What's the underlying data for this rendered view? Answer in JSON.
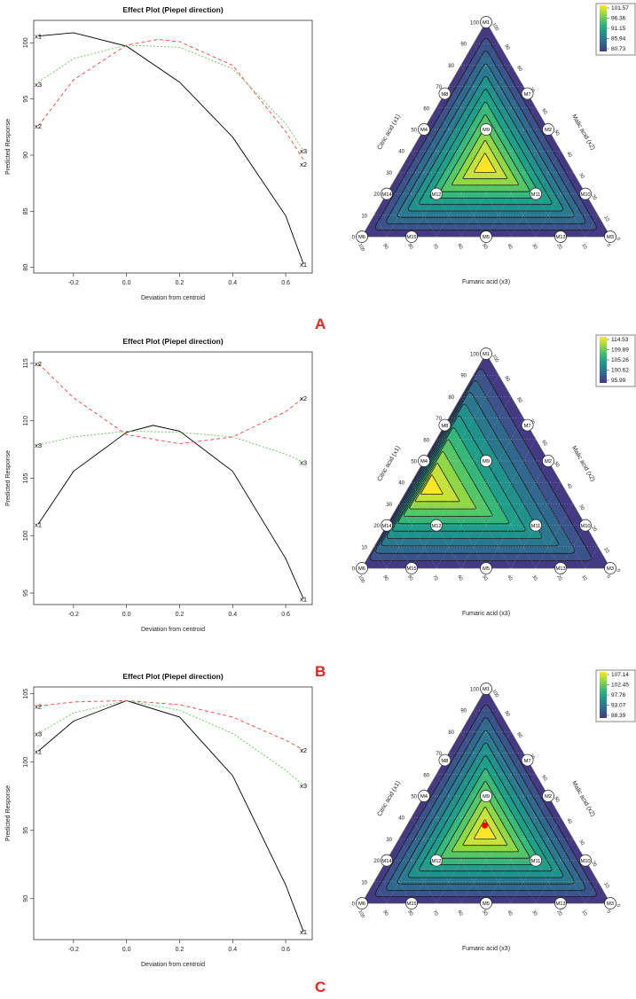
{
  "chart_data": [
    {
      "id": "A",
      "type": "line",
      "title": "Effect Plot (Piepel direction)",
      "xlabel": "Deviation from centroid",
      "ylabel": "Predicted Response",
      "xlim": [
        -0.35,
        0.7
      ],
      "ylim": [
        79.5,
        102
      ],
      "xticks": [
        -0.2,
        0.0,
        0.2,
        0.4,
        0.6
      ],
      "xtick_labels": [
        "-0.2",
        "0.0",
        "0.2",
        "0.4",
        "0.6"
      ],
      "yticks": [
        80,
        85,
        90,
        95,
        100
      ],
      "ytick_labels": [
        "80",
        "85",
        "90",
        "95",
        "100"
      ],
      "series": [
        {
          "name": "x1",
          "color": "#000000",
          "dash": "none",
          "x": [
            -0.333,
            -0.2,
            0.0,
            0.2,
            0.4,
            0.6,
            0.667
          ],
          "values": [
            100.6,
            100.9,
            99.7,
            96.5,
            91.6,
            84.6,
            80.3
          ]
        },
        {
          "name": "x2",
          "color": "#e8473f",
          "dash": "4,3",
          "x": [
            -0.333,
            -0.2,
            0.0,
            0.12,
            0.2,
            0.4,
            0.6,
            0.667
          ],
          "values": [
            92.6,
            96.7,
            99.8,
            100.3,
            100.1,
            98.0,
            92.1,
            89.6
          ]
        },
        {
          "name": "x3",
          "color": "#6bc35b",
          "dash": "2,2",
          "x": [
            -0.333,
            -0.2,
            0.0,
            0.2,
            0.4,
            0.6,
            0.667
          ],
          "values": [
            96.5,
            98.6,
            99.8,
            99.6,
            97.7,
            92.8,
            90.4
          ]
        }
      ],
      "line_labels": [
        {
          "text": "x1",
          "x": -0.333,
          "y": 100.6
        },
        {
          "text": "x3",
          "x": -0.333,
          "y": 96.3
        },
        {
          "text": "x2",
          "x": -0.333,
          "y": 92.6
        },
        {
          "text": "x3",
          "x": 0.667,
          "y": 90.4
        },
        {
          "text": "x2",
          "x": 0.667,
          "y": 89.2
        },
        {
          "text": "x1",
          "x": 0.667,
          "y": 80.3
        }
      ],
      "ternary": {
        "type": "ternary contour",
        "legend_values": [
          "101.57",
          "96.36",
          "91.15",
          "85.94",
          "80.73"
        ],
        "colors": [
          "#fde725",
          "#8fd744",
          "#35b779",
          "#21918c",
          "#31688e",
          "#443a83"
        ],
        "axis_labels": [
          "Citric acid (x1)",
          "Malic acid (x2)",
          "Fumaric acid (x3)"
        ],
        "peak": [
          0.33,
          0.33,
          0.34
        ],
        "vertex_level": 80.7,
        "marker": false
      }
    },
    {
      "id": "B",
      "type": "line",
      "title": "Effect Plot (Piepel direction)",
      "xlabel": "Deviation from centroid",
      "ylabel": "Predicted Response",
      "xlim": [
        -0.35,
        0.7
      ],
      "ylim": [
        94,
        116
      ],
      "xticks": [
        -0.2,
        0.0,
        0.2,
        0.4,
        0.6
      ],
      "xtick_labels": [
        "-0.2",
        "0.0",
        "0.2",
        "0.4",
        "0.6"
      ],
      "yticks": [
        95,
        100,
        105,
        110,
        115
      ],
      "ytick_labels": [
        "95",
        "100",
        "105",
        "110",
        "115"
      ],
      "series": [
        {
          "name": "x1",
          "color": "#000000",
          "dash": "none",
          "x": [
            -0.333,
            -0.2,
            0.0,
            0.1,
            0.2,
            0.4,
            0.6,
            0.667
          ],
          "values": [
            101.0,
            105.6,
            109.0,
            109.6,
            109.1,
            105.6,
            98.0,
            94.5
          ]
        },
        {
          "name": "x2",
          "color": "#e8473f",
          "dash": "4,3",
          "x": [
            -0.333,
            -0.2,
            0.0,
            0.2,
            0.4,
            0.6,
            0.667
          ],
          "values": [
            115.0,
            112.0,
            108.8,
            108.0,
            108.6,
            110.8,
            112.0
          ]
        },
        {
          "name": "x3",
          "color": "#6bc35b",
          "dash": "2,2",
          "x": [
            -0.333,
            -0.2,
            0.0,
            0.2,
            0.4,
            0.6,
            0.667
          ],
          "values": [
            107.9,
            108.6,
            109.1,
            109.0,
            108.6,
            107.1,
            106.4
          ]
        }
      ],
      "line_labels": [
        {
          "text": "x2",
          "x": -0.333,
          "y": 115.0
        },
        {
          "text": "x3",
          "x": -0.333,
          "y": 107.9
        },
        {
          "text": "x1",
          "x": -0.333,
          "y": 101.0
        },
        {
          "text": "x2",
          "x": 0.667,
          "y": 112.0
        },
        {
          "text": "x3",
          "x": 0.667,
          "y": 106.4
        },
        {
          "text": "x1",
          "x": 0.667,
          "y": 94.5
        }
      ],
      "ternary": {
        "type": "ternary contour",
        "legend_values": [
          "114.53",
          "109.89",
          "105.26",
          "100.62",
          "95.99"
        ],
        "colors": [
          "#fde725",
          "#8fd744",
          "#35b779",
          "#21918c",
          "#31688e",
          "#443a83"
        ],
        "axis_labels": [
          "Citric acid (x1)",
          "Malic acid (x2)",
          "Fumaric acid (x3)"
        ],
        "peak": [
          0.38,
          0.07,
          0.55
        ],
        "vertex_level": 96.0,
        "marker": false
      }
    },
    {
      "id": "C",
      "type": "line",
      "title": "Effect Plot (Piepel direction)",
      "xlabel": "Deviation from centroid",
      "ylabel": "Predicted Response",
      "xlim": [
        -0.35,
        0.7
      ],
      "ylim": [
        87,
        105.5
      ],
      "xticks": [
        -0.2,
        0.0,
        0.2,
        0.4,
        0.6
      ],
      "xtick_labels": [
        "-0.2",
        "0.0",
        "0.2",
        "0.4",
        "0.6"
      ],
      "yticks": [
        90,
        95,
        100,
        105
      ],
      "ytick_labels": [
        "90",
        "95",
        "100",
        "105"
      ],
      "series": [
        {
          "name": "x1",
          "color": "#000000",
          "dash": "none",
          "x": [
            -0.333,
            -0.2,
            0.0,
            0.2,
            0.4,
            0.6,
            0.667
          ],
          "values": [
            100.8,
            103.0,
            104.5,
            103.3,
            99.0,
            91.0,
            87.6
          ]
        },
        {
          "name": "x2",
          "color": "#e8473f",
          "dash": "4,3",
          "x": [
            -0.333,
            -0.2,
            0.0,
            0.2,
            0.4,
            0.6,
            0.667
          ],
          "values": [
            104.1,
            104.4,
            104.5,
            104.2,
            103.3,
            101.6,
            100.9
          ]
        },
        {
          "name": "x3",
          "color": "#6bc35b",
          "dash": "2,2",
          "x": [
            -0.333,
            -0.2,
            0.0,
            0.2,
            0.4,
            0.6,
            0.667
          ],
          "values": [
            102.1,
            103.6,
            104.5,
            103.8,
            102.1,
            99.4,
            98.3
          ]
        }
      ],
      "line_labels": [
        {
          "text": "x2",
          "x": -0.333,
          "y": 104.1
        },
        {
          "text": "x3",
          "x": -0.333,
          "y": 102.1
        },
        {
          "text": "x1",
          "x": -0.333,
          "y": 100.8
        },
        {
          "text": "x2",
          "x": 0.667,
          "y": 100.9
        },
        {
          "text": "x3",
          "x": 0.667,
          "y": 98.3
        },
        {
          "text": "x1",
          "x": 0.667,
          "y": 87.6
        }
      ],
      "ternary": {
        "type": "ternary contour",
        "legend_values": [
          "107.14",
          "102.45",
          "97.76",
          "93.07",
          "88.39"
        ],
        "colors": [
          "#fde725",
          "#8fd744",
          "#35b779",
          "#21918c",
          "#31688e",
          "#443a83"
        ],
        "axis_labels": [
          "Citric acid (x1)",
          "Malic acid (x2)",
          "Fumaric acid (x3)"
        ],
        "peak": [
          0.33,
          0.33,
          0.34
        ],
        "vertex_level": 88.4,
        "marker": true,
        "marker_color": "#ff0000"
      }
    }
  ],
  "ternary_common": {
    "points": [
      {
        "name": "M1",
        "c": [
          1.0,
          0.0,
          0.0
        ]
      },
      {
        "name": "M8",
        "c": [
          0.667,
          0.0,
          0.333
        ]
      },
      {
        "name": "M7",
        "c": [
          0.667,
          0.333,
          0.0
        ]
      },
      {
        "name": "M4",
        "c": [
          0.5,
          0.0,
          0.5
        ]
      },
      {
        "name": "M9",
        "c": [
          0.5,
          0.25,
          0.25
        ]
      },
      {
        "name": "M2",
        "c": [
          0.5,
          0.5,
          0.0
        ]
      },
      {
        "name": "M14",
        "c": [
          0.2,
          0.0,
          0.8
        ]
      },
      {
        "name": "M12",
        "c": [
          0.2,
          0.2,
          0.6
        ]
      },
      {
        "name": "M11",
        "c": [
          0.2,
          0.6,
          0.2
        ]
      },
      {
        "name": "M10",
        "c": [
          0.2,
          0.8,
          0.0
        ]
      },
      {
        "name": "M6",
        "c": [
          0.0,
          0.0,
          1.0
        ]
      },
      {
        "name": "M15",
        "c": [
          0.0,
          0.2,
          0.8
        ]
      },
      {
        "name": "M5",
        "c": [
          0.0,
          0.5,
          0.5
        ]
      },
      {
        "name": "M13",
        "c": [
          0.0,
          0.8,
          0.2
        ]
      },
      {
        "name": "M3",
        "c": [
          0.0,
          1.0,
          0.0
        ]
      }
    ],
    "left_ticks": [
      "0",
      "10",
      "20",
      "30",
      "40",
      "50",
      "60",
      "70",
      "80",
      "90",
      "100"
    ],
    "right_ticks": [
      "100",
      "90",
      "80",
      "70",
      "60",
      "50",
      "40",
      "30",
      "20",
      "10",
      "0"
    ],
    "bottom_ticks": [
      "100",
      "90",
      "80",
      "70",
      "60",
      "50",
      "40",
      "30",
      "20",
      "10",
      "0"
    ]
  },
  "panel_labels": [
    "A",
    "B",
    "C"
  ]
}
